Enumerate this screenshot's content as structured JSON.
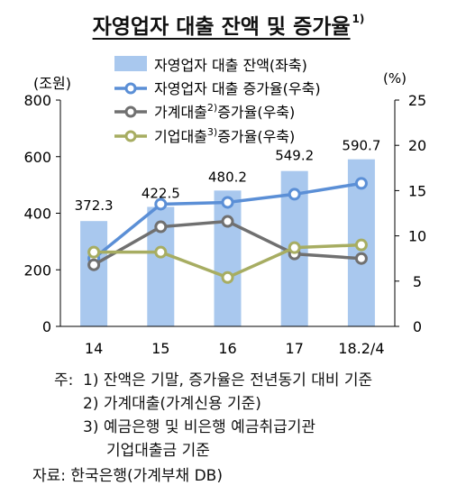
{
  "title": "자영업자 대출 잔액 및 증가율",
  "title_sup": "1)",
  "chart_data": {
    "type": "bar+line",
    "categories": [
      "14",
      "15",
      "16",
      "17",
      "18.2/4"
    ],
    "left_axis": {
      "unit": "(조원)",
      "range": [
        0,
        800
      ],
      "ticks": [
        "0",
        "200",
        "400",
        "600",
        "800"
      ]
    },
    "right_axis": {
      "unit": "(%)",
      "range": [
        0,
        25
      ],
      "ticks": [
        "0",
        "5",
        "10",
        "15",
        "20",
        "25"
      ]
    },
    "bars": {
      "name": "자영업자 대출 잔액(좌축)",
      "values": [
        372.3,
        422.5,
        480.2,
        549.2,
        590.7
      ],
      "labels": [
        "372.3",
        "422.5",
        "480.2",
        "549.2",
        "590.7"
      ],
      "color": "#a9c8ee"
    },
    "lines": [
      {
        "name": "자영업자 대출 증가율(우축)",
        "values": [
          7.5,
          13.5,
          13.7,
          14.6,
          15.8
        ],
        "color": "#5b8fd6"
      },
      {
        "name_parts": [
          "가계대출",
          "2)",
          "증가율(우축)"
        ],
        "values": [
          6.8,
          11.0,
          11.6,
          8.0,
          7.5
        ],
        "color": "#707070"
      },
      {
        "name_parts": [
          "기업대출",
          "3)",
          "증가율(우축)"
        ],
        "values": [
          8.2,
          8.2,
          5.4,
          8.7,
          9.0
        ],
        "color": "#a7ad62"
      }
    ],
    "grid": false,
    "legend_position": "top"
  },
  "notes": {
    "line1_prefix": "주:",
    "line1": "1) 잔액은 기말, 증가율은 전년동기 대비 기준",
    "line2": "2) 가계대출(가계신용 기준)",
    "line3": "3) 예금은행 및 비은행 예금취급기관",
    "line4": "기업대출금 기준",
    "source": "자료: 한국은행(가계부채 DB)"
  }
}
